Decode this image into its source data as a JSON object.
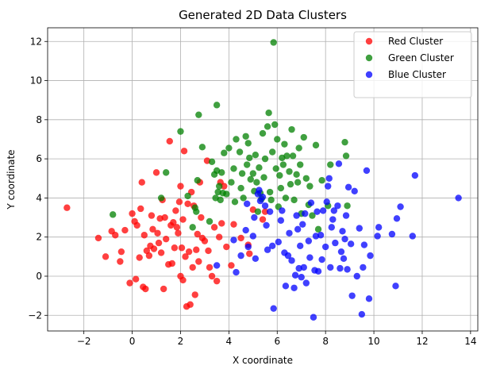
{
  "chart_data": {
    "type": "scatter",
    "title": "Generated 2D Data Clusters",
    "xlabel": "X coordinate",
    "ylabel": "Y coordinate",
    "xlim": [
      -3.5,
      14.3
    ],
    "ylim": [
      -2.8,
      12.7
    ],
    "xticks": [
      -2,
      0,
      2,
      4,
      6,
      8,
      10,
      12,
      14
    ],
    "yticks": [
      -2,
      0,
      2,
      4,
      6,
      8,
      10,
      12
    ],
    "grid": true,
    "legend_position": "top-right",
    "series": [
      {
        "name": "Red Cluster",
        "color": "#ff0000",
        "points": [
          [
            -2.7,
            3.5
          ],
          [
            -1.4,
            1.95
          ],
          [
            -1.1,
            1.0
          ],
          [
            -0.85,
            2.3
          ],
          [
            -0.7,
            2.1
          ],
          [
            -0.5,
            0.75
          ],
          [
            -0.45,
            1.25
          ],
          [
            -0.3,
            2.35
          ],
          [
            -0.1,
            -0.35
          ],
          [
            0.0,
            3.2
          ],
          [
            0.1,
            2.8
          ],
          [
            0.15,
            -0.15
          ],
          [
            0.2,
            2.6
          ],
          [
            0.3,
            0.95
          ],
          [
            0.35,
            3.45
          ],
          [
            0.4,
            4.8
          ],
          [
            0.45,
            -0.55
          ],
          [
            0.5,
            2.1
          ],
          [
            0.55,
            -0.65
          ],
          [
            0.6,
            1.3
          ],
          [
            0.7,
            1.05
          ],
          [
            0.75,
            1.55
          ],
          [
            0.8,
            3.1
          ],
          [
            0.85,
            2.4
          ],
          [
            0.9,
            1.4
          ],
          [
            1.0,
            5.3
          ],
          [
            1.05,
            2.2
          ],
          [
            1.1,
            1.7
          ],
          [
            1.15,
            2.95
          ],
          [
            1.2,
            1.2
          ],
          [
            1.25,
            3.9
          ],
          [
            1.3,
            -0.65
          ],
          [
            1.35,
            3.0
          ],
          [
            1.4,
            1.9
          ],
          [
            1.5,
            0.6
          ],
          [
            1.55,
            6.9
          ],
          [
            1.6,
            2.6
          ],
          [
            1.65,
            0.65
          ],
          [
            1.7,
            2.75
          ],
          [
            1.75,
            1.45
          ],
          [
            1.8,
            3.35
          ],
          [
            1.85,
            2.5
          ],
          [
            1.9,
            2.2
          ],
          [
            1.95,
            3.8
          ],
          [
            2.0,
            4.6
          ],
          [
            2.0,
            0.0
          ],
          [
            2.05,
            1.45
          ],
          [
            2.1,
            2.9
          ],
          [
            2.1,
            -0.2
          ],
          [
            2.15,
            6.4
          ],
          [
            2.2,
            1.0
          ],
          [
            2.25,
            -1.55
          ],
          [
            2.3,
            3.7
          ],
          [
            2.35,
            1.25
          ],
          [
            2.4,
            -1.45
          ],
          [
            2.45,
            4.3
          ],
          [
            2.5,
            0.45
          ],
          [
            2.55,
            3.6
          ],
          [
            2.6,
            -0.95
          ],
          [
            2.65,
            1.35
          ],
          [
            2.7,
            2.15
          ],
          [
            2.75,
            0.75
          ],
          [
            2.8,
            4.8
          ],
          [
            2.85,
            3.0
          ],
          [
            2.9,
            1.95
          ],
          [
            3.0,
            1.8
          ],
          [
            3.1,
            5.9
          ],
          [
            3.15,
            1.3
          ],
          [
            3.2,
            0.45
          ],
          [
            3.3,
            0.0
          ],
          [
            3.4,
            2.5
          ],
          [
            3.5,
            -0.25
          ],
          [
            3.6,
            2.0
          ],
          [
            3.65,
            4.8
          ],
          [
            3.7,
            2.7
          ],
          [
            3.8,
            4.6
          ],
          [
            3.9,
            1.5
          ],
          [
            4.1,
            0.55
          ],
          [
            4.2,
            2.65
          ],
          [
            4.5,
            1.95
          ],
          [
            4.8,
            1.6
          ],
          [
            4.85,
            1.15
          ],
          [
            5.0,
            3.4
          ],
          [
            5.4,
            2.9
          ],
          [
            5.5,
            3.3
          ]
        ]
      },
      {
        "name": "Green Cluster",
        "color": "#008000",
        "points": [
          [
            -0.8,
            3.15
          ],
          [
            1.2,
            4.0
          ],
          [
            1.4,
            5.3
          ],
          [
            2.0,
            7.4
          ],
          [
            2.3,
            4.1
          ],
          [
            2.5,
            2.5
          ],
          [
            2.6,
            3.5
          ],
          [
            2.65,
            3.3
          ],
          [
            2.7,
            4.9
          ],
          [
            2.75,
            8.25
          ],
          [
            2.9,
            6.6
          ],
          [
            3.2,
            2.8
          ],
          [
            3.3,
            5.85
          ],
          [
            3.4,
            5.2
          ],
          [
            3.45,
            4.0
          ],
          [
            3.5,
            8.75
          ],
          [
            3.5,
            5.4
          ],
          [
            3.55,
            4.3
          ],
          [
            3.6,
            4.6
          ],
          [
            3.65,
            3.9
          ],
          [
            3.7,
            5.3
          ],
          [
            3.75,
            4.25
          ],
          [
            3.8,
            6.3
          ],
          [
            3.9,
            4.2
          ],
          [
            4.0,
            6.55
          ],
          [
            4.1,
            4.8
          ],
          [
            4.2,
            5.5
          ],
          [
            4.25,
            3.8
          ],
          [
            4.3,
            7.0
          ],
          [
            4.45,
            6.35
          ],
          [
            4.5,
            4.5
          ],
          [
            4.55,
            5.25
          ],
          [
            4.6,
            4.0
          ],
          [
            4.7,
            7.15
          ],
          [
            4.75,
            5.7
          ],
          [
            4.8,
            6.8
          ],
          [
            4.85,
            6.05
          ],
          [
            4.9,
            4.95
          ],
          [
            5.0,
            5.25
          ],
          [
            5.05,
            4.35
          ],
          [
            5.1,
            6.2
          ],
          [
            5.15,
            4.8
          ],
          [
            5.2,
            3.3
          ],
          [
            5.25,
            5.55
          ],
          [
            5.3,
            4.25
          ],
          [
            5.35,
            3.95
          ],
          [
            5.4,
            7.3
          ],
          [
            5.45,
            5.05
          ],
          [
            5.5,
            6.0
          ],
          [
            5.6,
            7.65
          ],
          [
            5.65,
            8.35
          ],
          [
            5.7,
            4.3
          ],
          [
            5.75,
            3.9
          ],
          [
            5.8,
            6.35
          ],
          [
            5.85,
            11.95
          ],
          [
            5.9,
            7.75
          ],
          [
            5.95,
            5.5
          ],
          [
            6.0,
            7.0
          ],
          [
            6.05,
            3.55
          ],
          [
            6.1,
            5.15
          ],
          [
            6.15,
            4.5
          ],
          [
            6.2,
            6.05
          ],
          [
            6.25,
            5.7
          ],
          [
            6.3,
            6.75
          ],
          [
            6.35,
            4.0
          ],
          [
            6.4,
            6.15
          ],
          [
            6.5,
            5.35
          ],
          [
            6.55,
            4.7
          ],
          [
            6.6,
            7.5
          ],
          [
            6.65,
            6.15
          ],
          [
            6.7,
            3.9
          ],
          [
            6.8,
            5.2
          ],
          [
            6.85,
            4.8
          ],
          [
            6.9,
            6.55
          ],
          [
            6.95,
            5.7
          ],
          [
            7.0,
            3.2
          ],
          [
            7.1,
            7.1
          ],
          [
            7.2,
            5.0
          ],
          [
            7.3,
            3.65
          ],
          [
            7.35,
            4.6
          ],
          [
            7.45,
            3.1
          ],
          [
            7.6,
            6.7
          ],
          [
            7.7,
            2.4
          ],
          [
            7.85,
            4.9
          ],
          [
            8.1,
            3.6
          ],
          [
            8.2,
            5.7
          ],
          [
            8.8,
            6.85
          ],
          [
            8.85,
            6.15
          ],
          [
            8.9,
            3.6
          ]
        ]
      },
      {
        "name": "Blue Cluster",
        "color": "#0000ff",
        "points": [
          [
            3.5,
            0.55
          ],
          [
            4.2,
            1.85
          ],
          [
            4.3,
            0.2
          ],
          [
            4.5,
            1.05
          ],
          [
            4.7,
            2.35
          ],
          [
            4.75,
            3.7
          ],
          [
            4.8,
            1.5
          ],
          [
            5.0,
            2.05
          ],
          [
            5.05,
            3.0
          ],
          [
            5.1,
            0.9
          ],
          [
            5.2,
            4.2
          ],
          [
            5.25,
            4.4
          ],
          [
            5.3,
            3.85
          ],
          [
            5.4,
            4.05
          ],
          [
            5.5,
            3.6
          ],
          [
            5.55,
            2.6
          ],
          [
            5.6,
            1.35
          ],
          [
            5.7,
            3.3
          ],
          [
            5.8,
            1.55
          ],
          [
            5.85,
            -1.65
          ],
          [
            6.05,
            1.75
          ],
          [
            6.15,
            2.85
          ],
          [
            6.2,
            3.35
          ],
          [
            6.3,
            1.2
          ],
          [
            6.35,
            -0.5
          ],
          [
            6.45,
            1.05
          ],
          [
            6.5,
            2.2
          ],
          [
            6.6,
            0.8
          ],
          [
            6.7,
            -0.6
          ],
          [
            6.75,
            0.05
          ],
          [
            6.8,
            3.1
          ],
          [
            6.85,
            2.4
          ],
          [
            6.9,
            0.4
          ],
          [
            6.95,
            1.55
          ],
          [
            7.0,
            -0.05
          ],
          [
            7.05,
            2.65
          ],
          [
            7.1,
            0.45
          ],
          [
            7.15,
            3.2
          ],
          [
            7.2,
            -0.35
          ],
          [
            7.3,
            1.8
          ],
          [
            7.35,
            0.95
          ],
          [
            7.4,
            3.75
          ],
          [
            7.5,
            -2.1
          ],
          [
            7.55,
            0.3
          ],
          [
            7.6,
            2.05
          ],
          [
            7.65,
            3.3
          ],
          [
            7.7,
            0.25
          ],
          [
            7.8,
            2.1
          ],
          [
            7.85,
            0.85
          ],
          [
            7.9,
            3.35
          ],
          [
            8.0,
            1.5
          ],
          [
            8.05,
            3.8
          ],
          [
            8.1,
            4.6
          ],
          [
            8.15,
            5.0
          ],
          [
            8.2,
            0.45
          ],
          [
            8.25,
            2.5
          ],
          [
            8.3,
            2.9
          ],
          [
            8.35,
            3.35
          ],
          [
            8.4,
            1.7
          ],
          [
            8.5,
            3.6
          ],
          [
            8.55,
            5.75
          ],
          [
            8.6,
            0.4
          ],
          [
            8.65,
            1.25
          ],
          [
            8.7,
            2.3
          ],
          [
            8.75,
            0.9
          ],
          [
            8.8,
            1.9
          ],
          [
            8.85,
            3.1
          ],
          [
            8.9,
            0.35
          ],
          [
            8.95,
            4.55
          ],
          [
            9.05,
            1.65
          ],
          [
            9.1,
            -1.0
          ],
          [
            9.2,
            4.35
          ],
          [
            9.3,
            0.0
          ],
          [
            9.4,
            2.45
          ],
          [
            9.5,
            -1.95
          ],
          [
            9.55,
            0.45
          ],
          [
            9.6,
            1.6
          ],
          [
            9.7,
            5.4
          ],
          [
            9.8,
            -1.15
          ],
          [
            9.85,
            1.05
          ],
          [
            10.15,
            2.05
          ],
          [
            10.2,
            2.5
          ],
          [
            10.75,
            2.15
          ],
          [
            10.9,
            -0.5
          ],
          [
            10.95,
            2.95
          ],
          [
            11.1,
            3.55
          ],
          [
            11.6,
            2.05
          ],
          [
            11.7,
            5.15
          ],
          [
            13.5,
            4.0
          ]
        ]
      }
    ]
  }
}
